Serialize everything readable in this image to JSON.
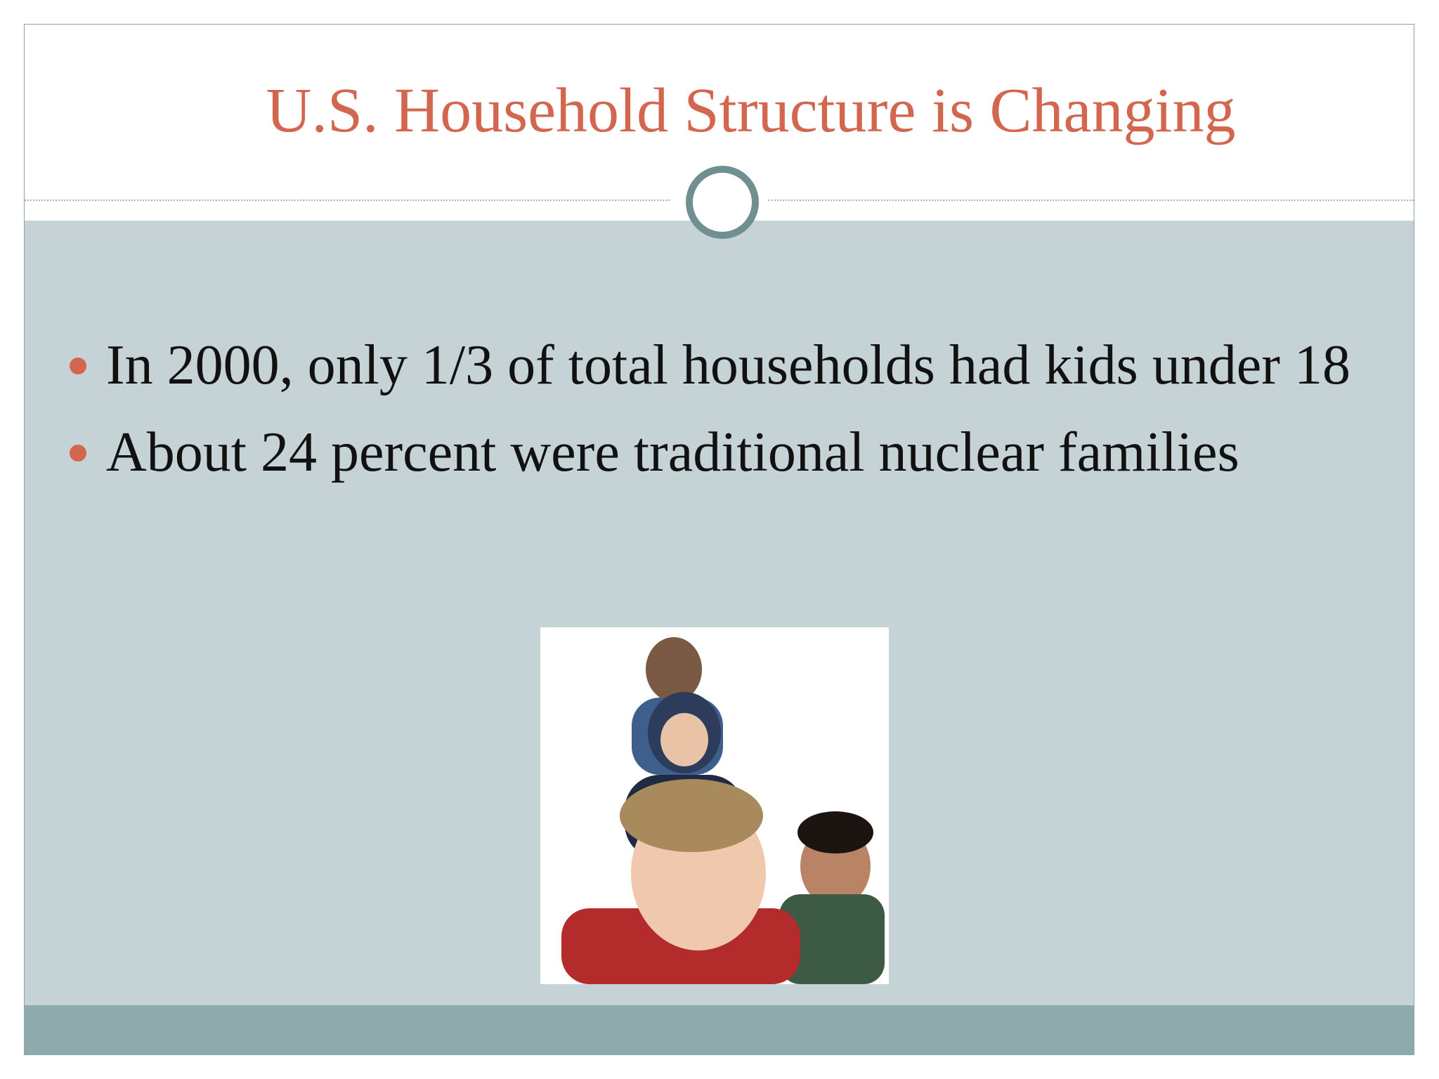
{
  "slide": {
    "title": "U.S. Household Structure is Changing",
    "bullets": [
      "In 2000, only 1/3 of total households had kids under 18",
      "About 24 percent were traditional nuclear families"
    ]
  }
}
